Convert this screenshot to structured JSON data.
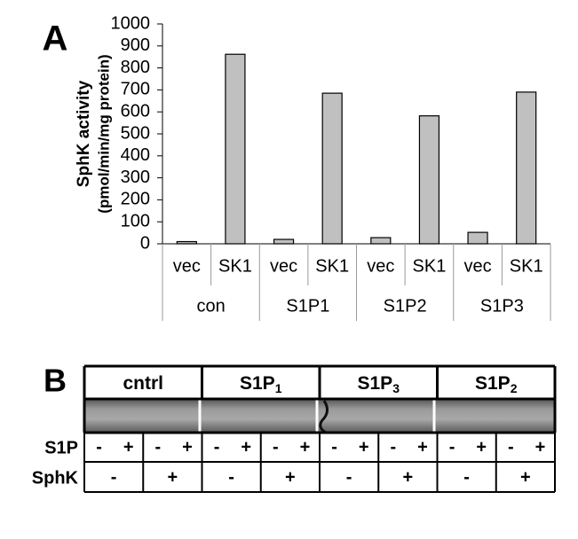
{
  "chart_data": {
    "type": "bar",
    "panel_label": "A",
    "y_label": [
      "SphK activity",
      "(pmol/min/mg protein)"
    ],
    "categories": [
      "vec",
      "SK1",
      "vec",
      "SK1",
      "vec",
      "SK1",
      "vec",
      "SK1"
    ],
    "groups": [
      "con",
      "S1P1",
      "S1P2",
      "S1P3"
    ],
    "values": [
      10,
      862,
      20,
      685,
      28,
      582,
      52,
      690
    ],
    "color": "#c0c0c0",
    "ylim": [
      0,
      1000
    ],
    "yticks": [
      0,
      100,
      200,
      300,
      400,
      500,
      600,
      700,
      800,
      900,
      1000
    ]
  },
  "panel_b": {
    "panel_label": "B",
    "headers": [
      {
        "text": "cntrl"
      },
      {
        "text": "S1P",
        "sub": "1"
      },
      {
        "text": "S1P",
        "sub": "3"
      },
      {
        "text": "S1P",
        "sub": "2"
      }
    ],
    "row_labels": [
      "S1P",
      "SphK"
    ],
    "s1p_signs": [
      "-",
      "+",
      "-",
      "+",
      "-",
      "+",
      "-",
      "+",
      "-",
      "+",
      "-",
      "+",
      "-",
      "+",
      "-",
      "+"
    ],
    "sphk_signs": [
      "-",
      "+",
      "-",
      "+",
      "-",
      "+",
      "-",
      "+"
    ]
  }
}
